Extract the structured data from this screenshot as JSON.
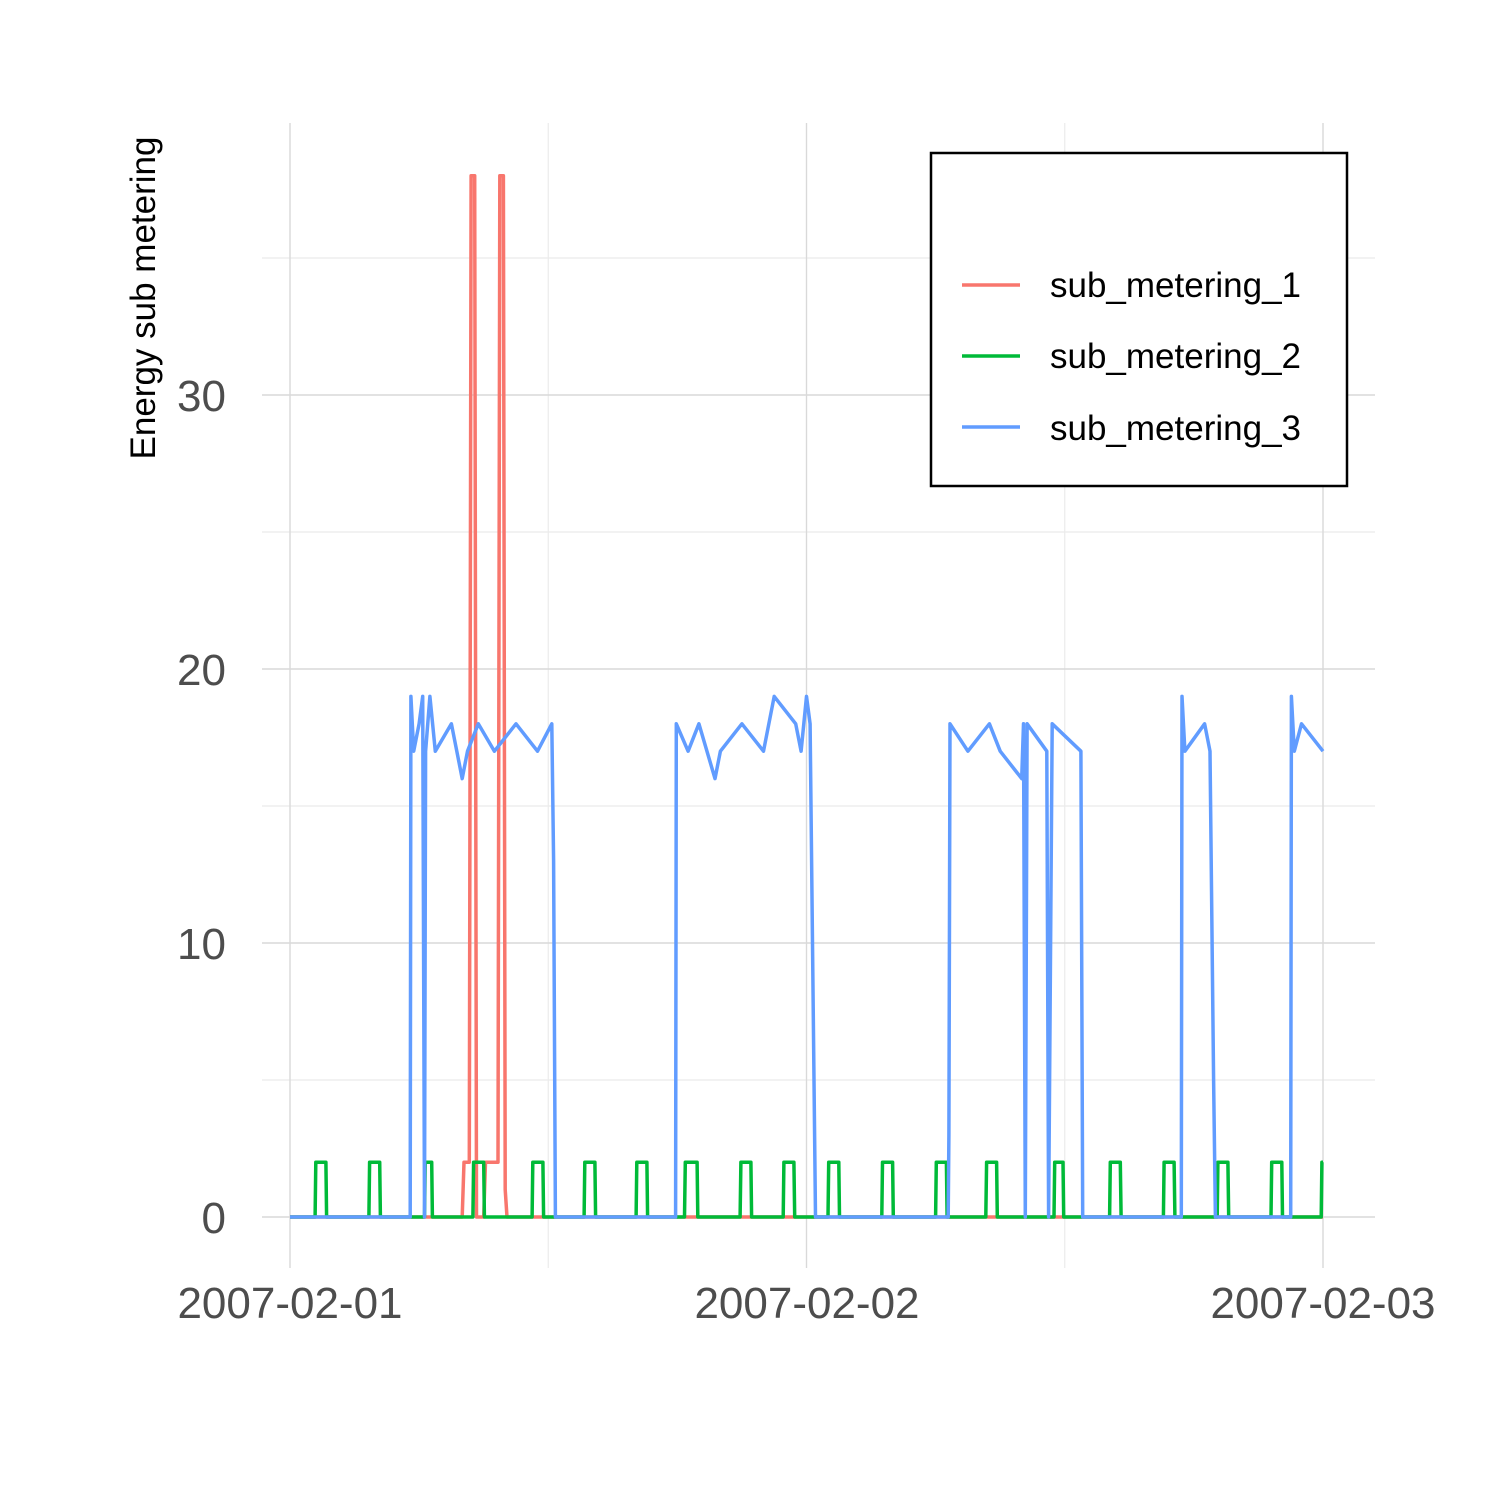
{
  "chart_data": {
    "type": "line",
    "title": "",
    "xlabel": "",
    "ylabel": "Energy sub metering",
    "x_ticks": [
      "2007-02-01",
      "2007-02-02",
      "2007-02-03"
    ],
    "y_ticks": [
      "0",
      "10",
      "20",
      "30"
    ],
    "xlim": [
      "2007-02-01T00:00",
      "2007-02-03T00:00"
    ],
    "ylim": [
      0,
      38
    ],
    "grid": true,
    "legend_position": "top-right",
    "series": [
      {
        "name": "sub_metering_1",
        "color": "#F8766D",
        "points": [
          [
            "2007-02-01T00:00",
            0
          ],
          [
            "2007-02-01T08:00",
            0
          ],
          [
            "2007-02-01T08:05",
            2
          ],
          [
            "2007-02-01T08:20",
            2
          ],
          [
            "2007-02-01T08:25",
            38
          ],
          [
            "2007-02-01T08:35",
            38
          ],
          [
            "2007-02-01T08:40",
            0
          ],
          [
            "2007-02-01T09:00",
            0
          ],
          [
            "2007-02-01T09:05",
            2
          ],
          [
            "2007-02-01T09:40",
            2
          ],
          [
            "2007-02-01T09:45",
            38
          ],
          [
            "2007-02-01T09:55",
            38
          ],
          [
            "2007-02-01T10:00",
            1
          ],
          [
            "2007-02-01T10:05",
            0
          ],
          [
            "2007-02-03T00:00",
            0
          ]
        ]
      },
      {
        "name": "sub_metering_2",
        "color": "#00BA38",
        "points": [
          [
            "2007-02-01T00:00",
            0
          ],
          [
            "2007-02-01T01:10",
            0
          ],
          [
            "2007-02-01T01:12",
            2
          ],
          [
            "2007-02-01T01:40",
            2
          ],
          [
            "2007-02-01T01:42",
            0
          ],
          [
            "2007-02-01T03:40",
            0
          ],
          [
            "2007-02-01T03:42",
            2
          ],
          [
            "2007-02-01T04:10",
            2
          ],
          [
            "2007-02-01T04:12",
            0
          ],
          [
            "2007-02-01T06:15",
            0
          ],
          [
            "2007-02-01T06:17",
            2
          ],
          [
            "2007-02-01T06:35",
            2
          ],
          [
            "2007-02-01T06:37",
            0
          ],
          [
            "2007-02-01T08:30",
            0
          ],
          [
            "2007-02-01T08:32",
            2
          ],
          [
            "2007-02-01T09:00",
            2
          ],
          [
            "2007-02-01T09:02",
            0
          ],
          [
            "2007-02-01T11:15",
            0
          ],
          [
            "2007-02-01T11:17",
            2
          ],
          [
            "2007-02-01T11:45",
            2
          ],
          [
            "2007-02-01T11:47",
            0
          ],
          [
            "2007-02-01T13:40",
            0
          ],
          [
            "2007-02-01T13:42",
            2
          ],
          [
            "2007-02-01T14:10",
            2
          ],
          [
            "2007-02-01T14:12",
            0
          ],
          [
            "2007-02-01T16:05",
            0
          ],
          [
            "2007-02-01T16:07",
            2
          ],
          [
            "2007-02-01T16:35",
            2
          ],
          [
            "2007-02-01T16:37",
            0
          ],
          [
            "2007-02-01T18:20",
            0
          ],
          [
            "2007-02-01T18:22",
            2
          ],
          [
            "2007-02-01T18:55",
            2
          ],
          [
            "2007-02-01T18:57",
            0
          ],
          [
            "2007-02-01T20:55",
            0
          ],
          [
            "2007-02-01T20:57",
            2
          ],
          [
            "2007-02-01T21:25",
            2
          ],
          [
            "2007-02-01T21:27",
            0
          ],
          [
            "2007-02-01T22:55",
            0
          ],
          [
            "2007-02-01T22:57",
            2
          ],
          [
            "2007-02-01T23:25",
            2
          ],
          [
            "2007-02-01T23:27",
            0
          ],
          [
            "2007-02-02T01:00",
            0
          ],
          [
            "2007-02-02T01:02",
            2
          ],
          [
            "2007-02-02T01:30",
            2
          ],
          [
            "2007-02-02T01:32",
            0
          ],
          [
            "2007-02-02T03:30",
            0
          ],
          [
            "2007-02-02T03:32",
            2
          ],
          [
            "2007-02-02T04:00",
            2
          ],
          [
            "2007-02-02T04:02",
            0
          ],
          [
            "2007-02-02T06:00",
            0
          ],
          [
            "2007-02-02T06:02",
            2
          ],
          [
            "2007-02-02T06:30",
            2
          ],
          [
            "2007-02-02T06:32",
            0
          ],
          [
            "2007-02-02T08:20",
            0
          ],
          [
            "2007-02-02T08:22",
            2
          ],
          [
            "2007-02-02T08:50",
            2
          ],
          [
            "2007-02-02T08:52",
            0
          ],
          [
            "2007-02-02T11:30",
            0
          ],
          [
            "2007-02-02T11:32",
            2
          ],
          [
            "2007-02-02T11:55",
            2
          ],
          [
            "2007-02-02T11:57",
            0
          ],
          [
            "2007-02-02T14:05",
            0
          ],
          [
            "2007-02-02T14:07",
            2
          ],
          [
            "2007-02-02T14:35",
            2
          ],
          [
            "2007-02-02T14:37",
            0
          ],
          [
            "2007-02-02T16:35",
            0
          ],
          [
            "2007-02-02T16:37",
            2
          ],
          [
            "2007-02-02T17:05",
            2
          ],
          [
            "2007-02-02T17:07",
            0
          ],
          [
            "2007-02-02T19:05",
            0
          ],
          [
            "2007-02-02T19:07",
            2
          ],
          [
            "2007-02-02T19:35",
            2
          ],
          [
            "2007-02-02T19:37",
            0
          ],
          [
            "2007-02-02T21:35",
            0
          ],
          [
            "2007-02-02T21:37",
            2
          ],
          [
            "2007-02-02T22:05",
            2
          ],
          [
            "2007-02-02T22:07",
            0
          ],
          [
            "2007-02-02T23:55",
            0
          ],
          [
            "2007-02-02T23:57",
            2
          ],
          [
            "2007-02-03T00:00",
            2
          ]
        ]
      },
      {
        "name": "sub_metering_3",
        "color": "#619CFF",
        "points": [
          [
            "2007-02-01T00:00",
            0
          ],
          [
            "2007-02-01T05:35",
            0
          ],
          [
            "2007-02-01T05:37",
            19
          ],
          [
            "2007-02-01T05:45",
            17
          ],
          [
            "2007-02-01T06:00",
            18
          ],
          [
            "2007-02-01T06:10",
            19
          ],
          [
            "2007-02-01T06:15",
            0
          ],
          [
            "2007-02-01T06:18",
            17
          ],
          [
            "2007-02-01T06:30",
            19
          ],
          [
            "2007-02-01T06:45",
            17
          ],
          [
            "2007-02-01T07:30",
            18
          ],
          [
            "2007-02-01T07:45",
            17
          ],
          [
            "2007-02-01T08:00",
            16
          ],
          [
            "2007-02-01T08:15",
            17
          ],
          [
            "2007-02-01T08:45",
            18
          ],
          [
            "2007-02-01T09:30",
            17
          ],
          [
            "2007-02-01T10:30",
            18
          ],
          [
            "2007-02-01T11:30",
            17
          ],
          [
            "2007-02-01T12:10",
            18
          ],
          [
            "2007-02-01T12:15",
            13
          ],
          [
            "2007-02-01T12:20",
            0
          ],
          [
            "2007-02-01T17:55",
            0
          ],
          [
            "2007-02-01T17:57",
            18
          ],
          [
            "2007-02-01T18:30",
            17
          ],
          [
            "2007-02-01T19:00",
            18
          ],
          [
            "2007-02-01T19:45",
            16
          ],
          [
            "2007-02-01T20:00",
            17
          ],
          [
            "2007-02-01T21:00",
            18
          ],
          [
            "2007-02-01T22:00",
            17
          ],
          [
            "2007-02-01T22:30",
            19
          ],
          [
            "2007-02-01T23:30",
            18
          ],
          [
            "2007-02-01T23:45",
            17
          ],
          [
            "2007-02-02T00:00",
            19
          ],
          [
            "2007-02-02T00:10",
            18
          ],
          [
            "2007-02-02T00:25",
            0
          ],
          [
            "2007-02-02T06:35",
            0
          ],
          [
            "2007-02-02T06:37",
            3
          ],
          [
            "2007-02-02T06:40",
            18
          ],
          [
            "2007-02-02T07:30",
            17
          ],
          [
            "2007-02-02T08:30",
            18
          ],
          [
            "2007-02-02T09:00",
            17
          ],
          [
            "2007-02-02T10:00",
            16
          ],
          [
            "2007-02-02T10:05",
            18
          ],
          [
            "2007-02-02T10:10",
            0
          ],
          [
            "2007-02-02T10:15",
            18
          ],
          [
            "2007-02-02T11:10",
            17
          ],
          [
            "2007-02-02T11:15",
            0
          ],
          [
            "2007-02-02T11:20",
            9
          ],
          [
            "2007-02-02T11:25",
            18
          ],
          [
            "2007-02-02T12:45",
            17
          ],
          [
            "2007-02-02T12:50",
            0
          ],
          [
            "2007-02-02T17:25",
            0
          ],
          [
            "2007-02-02T17:27",
            19
          ],
          [
            "2007-02-02T17:35",
            17
          ],
          [
            "2007-02-02T18:30",
            18
          ],
          [
            "2007-02-02T18:45",
            17
          ],
          [
            "2007-02-02T18:55",
            5
          ],
          [
            "2007-02-02T19:00",
            0
          ],
          [
            "2007-02-02T22:30",
            0
          ],
          [
            "2007-02-02T22:32",
            19
          ],
          [
            "2007-02-02T22:40",
            17
          ],
          [
            "2007-02-02T23:00",
            18
          ],
          [
            "2007-02-03T00:00",
            17
          ]
        ]
      }
    ]
  }
}
